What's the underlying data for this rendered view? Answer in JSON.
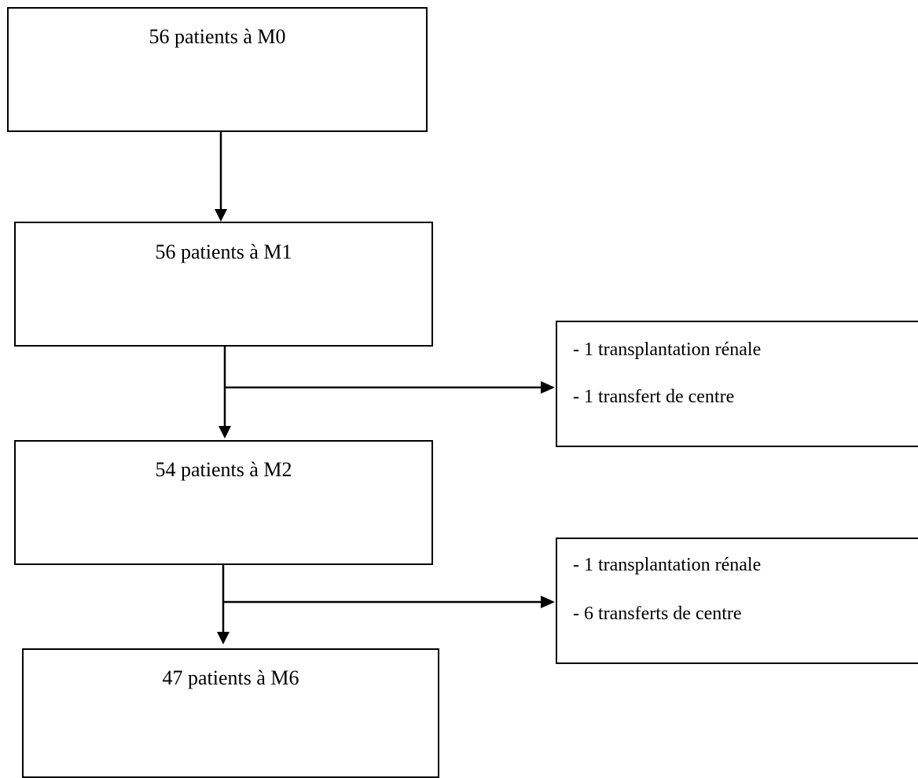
{
  "stages": [
    {
      "label": "56 patients à M0"
    },
    {
      "label": "56 patients à M1"
    },
    {
      "label": "54 patients à M2"
    },
    {
      "label": "47 patients à M6"
    }
  ],
  "exclusions": [
    {
      "lines": [
        "- 1 transplantation rénale",
        "- 1 transfert de centre"
      ]
    },
    {
      "lines": [
        "- 1 transplantation rénale",
        "- 6 transferts de centre"
      ]
    }
  ]
}
